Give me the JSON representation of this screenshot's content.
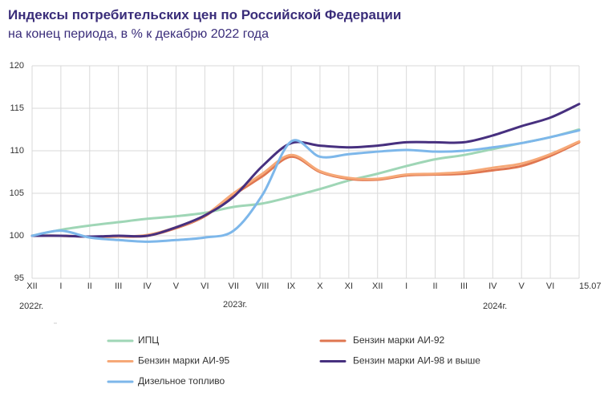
{
  "chart_data": {
    "type": "line",
    "title": "Индексы потребительских цен по Российской Федерации",
    "subtitle": "на конец периода, в % к декабрю 2022 года",
    "categories": [
      "XII",
      "I",
      "II",
      "III",
      "IV",
      "V",
      "VI",
      "VII",
      "VIII",
      "IX",
      "X",
      "XI",
      "XII",
      "I",
      "II",
      "III",
      "IV",
      "V",
      "VI",
      "15.07"
    ],
    "year_labels": [
      "2022г.",
      "2023г.",
      "2024г."
    ],
    "ylim": [
      95,
      120
    ],
    "yticks": [
      95,
      100,
      105,
      110,
      115,
      120
    ],
    "grid": true,
    "series": [
      {
        "name": "ИПЦ",
        "color": "#9fd6b6",
        "values": [
          100,
          100.7,
          101.2,
          101.6,
          102.0,
          102.3,
          102.7,
          103.4,
          103.8,
          104.6,
          105.5,
          106.5,
          107.3,
          108.2,
          109.0,
          109.5,
          110.2,
          110.9,
          111.6,
          112.5
        ]
      },
      {
        "name": "Бензин марки АИ-92",
        "color": "#df7650",
        "values": [
          100,
          100,
          99.9,
          99.9,
          100.0,
          100.9,
          102.3,
          104.8,
          107.0,
          109.3,
          107.5,
          106.7,
          106.6,
          107.1,
          107.2,
          107.3,
          107.7,
          108.2,
          109.4,
          111.0
        ]
      },
      {
        "name": "Бензин марки АИ-95",
        "color": "#f6a877",
        "values": [
          100,
          100,
          99.9,
          99.9,
          100.1,
          101.0,
          102.4,
          105.0,
          107.3,
          109.5,
          107.6,
          106.8,
          106.7,
          107.2,
          107.3,
          107.5,
          108.0,
          108.5,
          109.6,
          111.1
        ]
      },
      {
        "name": "Бензин марки АИ-98 и  выше",
        "color": "#47307f",
        "values": [
          100,
          100,
          99.9,
          100,
          100,
          101,
          102.4,
          104.6,
          108.2,
          110.9,
          110.6,
          110.4,
          110.6,
          111.0,
          111.0,
          111.0,
          111.8,
          112.9,
          113.9,
          115.5
        ]
      },
      {
        "name": "Дизельное топливо",
        "color": "#7db7ea",
        "values": [
          100,
          100.6,
          99.8,
          99.5,
          99.3,
          99.5,
          99.8,
          100.6,
          104.8,
          111.1,
          109.3,
          109.6,
          109.9,
          110.1,
          109.9,
          110.0,
          110.4,
          110.9,
          111.6,
          112.4
        ]
      }
    ]
  }
}
